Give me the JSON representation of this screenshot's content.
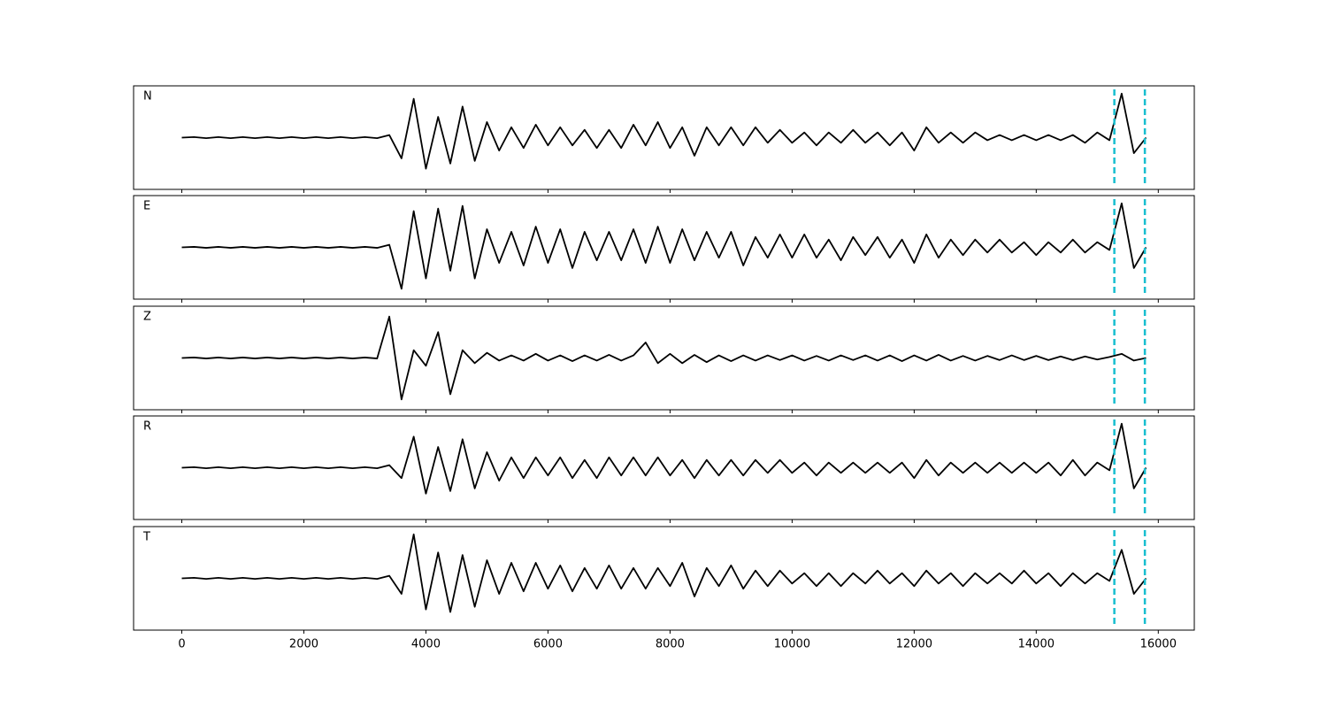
{
  "chart_data": [
    {
      "type": "line",
      "label": "N",
      "color": "#000000",
      "vline_color": "#17becf",
      "xlim": [
        -790,
        16590
      ],
      "ylim": [
        -1,
        1
      ],
      "xticks": [
        0,
        2000,
        4000,
        6000,
        8000,
        10000,
        12000,
        14000,
        16000
      ],
      "vlines": [
        15280,
        15780
      ],
      "x": [
        0,
        200,
        400,
        600,
        800,
        1000,
        1200,
        1400,
        1600,
        1800,
        2000,
        2200,
        2400,
        2600,
        2800,
        3000,
        3200,
        3400,
        3600,
        3800,
        4000,
        4200,
        4400,
        4600,
        4800,
        5000,
        5200,
        5400,
        5600,
        5800,
        6000,
        6200,
        6400,
        6600,
        6800,
        7000,
        7200,
        7400,
        7600,
        7800,
        8000,
        8200,
        8400,
        8600,
        8800,
        9000,
        9200,
        9400,
        9600,
        9800,
        10000,
        10200,
        10400,
        10600,
        10800,
        11000,
        11200,
        11400,
        11600,
        11800,
        12000,
        12200,
        12400,
        12600,
        12800,
        13000,
        13200,
        13400,
        13600,
        13800,
        14000,
        14200,
        14400,
        14600,
        14800,
        15000,
        15200,
        15400,
        15600,
        15800
      ],
      "values": [
        0,
        0.01,
        -0.01,
        0.01,
        -0.01,
        0.01,
        -0.01,
        0.01,
        -0.01,
        0.01,
        -0.01,
        0.01,
        -0.01,
        0.01,
        -0.01,
        0.01,
        -0.01,
        0.05,
        -0.4,
        0.75,
        -0.6,
        0.4,
        -0.5,
        0.6,
        -0.45,
        0.3,
        -0.25,
        0.2,
        -0.2,
        0.25,
        -0.15,
        0.2,
        -0.15,
        0.15,
        -0.2,
        0.15,
        -0.2,
        0.25,
        -0.15,
        0.3,
        -0.2,
        0.2,
        -0.35,
        0.2,
        -0.15,
        0.2,
        -0.15,
        0.2,
        -0.1,
        0.15,
        -0.1,
        0.1,
        -0.15,
        0.1,
        -0.1,
        0.15,
        -0.1,
        0.1,
        -0.15,
        0.1,
        -0.25,
        0.2,
        -0.1,
        0.1,
        -0.1,
        0.1,
        -0.05,
        0.05,
        -0.05,
        0.05,
        -0.05,
        0.05,
        -0.05,
        0.05,
        -0.1,
        0.1,
        -0.05,
        0.85,
        -0.3,
        0
      ]
    },
    {
      "type": "line",
      "label": "E",
      "color": "#000000",
      "vline_color": "#17becf",
      "xlim": [
        -790,
        16590
      ],
      "ylim": [
        -1,
        1
      ],
      "xticks": [
        0,
        2000,
        4000,
        6000,
        8000,
        10000,
        12000,
        14000,
        16000
      ],
      "vlines": [
        15280,
        15780
      ],
      "x": [
        0,
        200,
        400,
        600,
        800,
        1000,
        1200,
        1400,
        1600,
        1800,
        2000,
        2200,
        2400,
        2600,
        2800,
        3000,
        3200,
        3400,
        3600,
        3800,
        4000,
        4200,
        4400,
        4600,
        4800,
        5000,
        5200,
        5400,
        5600,
        5800,
        6000,
        6200,
        6400,
        6600,
        6800,
        7000,
        7200,
        7400,
        7600,
        7800,
        8000,
        8200,
        8400,
        8600,
        8800,
        9000,
        9200,
        9400,
        9600,
        9800,
        10000,
        10200,
        10400,
        10600,
        10800,
        11000,
        11200,
        11400,
        11600,
        11800,
        12000,
        12200,
        12400,
        12600,
        12800,
        13000,
        13200,
        13400,
        13600,
        13800,
        14000,
        14200,
        14400,
        14600,
        14800,
        15000,
        15200,
        15400,
        15600,
        15800
      ],
      "values": [
        0,
        0.01,
        -0.01,
        0.01,
        -0.01,
        0.01,
        -0.01,
        0.01,
        -0.01,
        0.01,
        -0.01,
        0.01,
        -0.01,
        0.01,
        -0.01,
        0.01,
        -0.01,
        0.05,
        -0.8,
        0.7,
        -0.6,
        0.75,
        -0.45,
        0.8,
        -0.6,
        0.35,
        -0.3,
        0.3,
        -0.35,
        0.4,
        -0.3,
        0.35,
        -0.4,
        0.3,
        -0.25,
        0.3,
        -0.25,
        0.35,
        -0.3,
        0.4,
        -0.3,
        0.35,
        -0.25,
        0.3,
        -0.2,
        0.3,
        -0.35,
        0.2,
        -0.2,
        0.25,
        -0.2,
        0.25,
        -0.2,
        0.15,
        -0.25,
        0.2,
        -0.15,
        0.2,
        -0.2,
        0.15,
        -0.3,
        0.25,
        -0.2,
        0.15,
        -0.15,
        0.15,
        -0.1,
        0.15,
        -0.1,
        0.1,
        -0.15,
        0.1,
        -0.1,
        0.15,
        -0.1,
        0.1,
        -0.05,
        0.85,
        -0.4,
        0
      ]
    },
    {
      "type": "line",
      "label": "Z",
      "color": "#000000",
      "vline_color": "#17becf",
      "xlim": [
        -790,
        16590
      ],
      "ylim": [
        -1,
        1
      ],
      "xticks": [
        0,
        2000,
        4000,
        6000,
        8000,
        10000,
        12000,
        14000,
        16000
      ],
      "vlines": [
        15280,
        15780
      ],
      "x": [
        0,
        200,
        400,
        600,
        800,
        1000,
        1200,
        1400,
        1600,
        1800,
        2000,
        2200,
        2400,
        2600,
        2800,
        3000,
        3200,
        3400,
        3600,
        3800,
        4000,
        4200,
        4400,
        4600,
        4800,
        5000,
        5200,
        5400,
        5600,
        5800,
        6000,
        6200,
        6400,
        6600,
        6800,
        7000,
        7200,
        7400,
        7600,
        7800,
        8000,
        8200,
        8400,
        8600,
        8800,
        9000,
        9200,
        9400,
        9600,
        9800,
        10000,
        10200,
        10400,
        10600,
        10800,
        11000,
        11200,
        11400,
        11600,
        11800,
        12000,
        12200,
        12400,
        12600,
        12800,
        13000,
        13200,
        13400,
        13600,
        13800,
        14000,
        14200,
        14400,
        14600,
        14800,
        15000,
        15200,
        15400,
        15600,
        15800
      ],
      "values": [
        0,
        0.01,
        -0.01,
        0.01,
        -0.01,
        0.01,
        -0.01,
        0.01,
        -0.01,
        0.01,
        -0.01,
        0.01,
        -0.01,
        0.01,
        -0.01,
        0.01,
        -0.01,
        0.8,
        -0.8,
        0.15,
        -0.15,
        0.5,
        -0.7,
        0.15,
        -0.1,
        0.1,
        -0.05,
        0.05,
        -0.05,
        0.08,
        -0.05,
        0.05,
        -0.06,
        0.05,
        -0.05,
        0.06,
        -0.05,
        0.05,
        0.3,
        -0.1,
        0.08,
        -0.1,
        0.06,
        -0.08,
        0.05,
        -0.06,
        0.05,
        -0.05,
        0.05,
        -0.04,
        0.05,
        -0.05,
        0.04,
        -0.05,
        0.05,
        -0.04,
        0.05,
        -0.05,
        0.05,
        -0.06,
        0.05,
        -0.05,
        0.06,
        -0.05,
        0.04,
        -0.05,
        0.04,
        -0.04,
        0.05,
        -0.04,
        0.04,
        -0.04,
        0.03,
        -0.04,
        0.03,
        -0.03,
        0.02,
        0.08,
        -0.05,
        0
      ]
    },
    {
      "type": "line",
      "label": "R",
      "color": "#000000",
      "vline_color": "#17becf",
      "xlim": [
        -790,
        16590
      ],
      "ylim": [
        -1,
        1
      ],
      "xticks": [
        0,
        2000,
        4000,
        6000,
        8000,
        10000,
        12000,
        14000,
        16000
      ],
      "vlines": [
        15280,
        15780
      ],
      "x": [
        0,
        200,
        400,
        600,
        800,
        1000,
        1200,
        1400,
        1600,
        1800,
        2000,
        2200,
        2400,
        2600,
        2800,
        3000,
        3200,
        3400,
        3600,
        3800,
        4000,
        4200,
        4400,
        4600,
        4800,
        5000,
        5200,
        5400,
        5600,
        5800,
        6000,
        6200,
        6400,
        6600,
        6800,
        7000,
        7200,
        7400,
        7600,
        7800,
        8000,
        8200,
        8400,
        8600,
        8800,
        9000,
        9200,
        9400,
        9600,
        9800,
        10000,
        10200,
        10400,
        10600,
        10800,
        11000,
        11200,
        11400,
        11600,
        11800,
        12000,
        12200,
        12400,
        12600,
        12800,
        13000,
        13200,
        13400,
        13600,
        13800,
        14000,
        14200,
        14400,
        14600,
        14800,
        15000,
        15200,
        15400,
        15600,
        15800
      ],
      "values": [
        0,
        0.01,
        -0.01,
        0.01,
        -0.01,
        0.01,
        -0.01,
        0.01,
        -0.01,
        0.01,
        -0.01,
        0.01,
        -0.01,
        0.01,
        -0.01,
        0.01,
        -0.01,
        0.05,
        -0.2,
        0.6,
        -0.5,
        0.4,
        -0.45,
        0.55,
        -0.4,
        0.3,
        -0.25,
        0.2,
        -0.2,
        0.2,
        -0.15,
        0.2,
        -0.2,
        0.15,
        -0.2,
        0.2,
        -0.15,
        0.2,
        -0.15,
        0.2,
        -0.15,
        0.15,
        -0.2,
        0.15,
        -0.15,
        0.15,
        -0.15,
        0.15,
        -0.1,
        0.15,
        -0.1,
        0.1,
        -0.15,
        0.1,
        -0.1,
        0.1,
        -0.1,
        0.1,
        -0.1,
        0.1,
        -0.2,
        0.15,
        -0.15,
        0.1,
        -0.1,
        0.1,
        -0.1,
        0.1,
        -0.1,
        0.1,
        -0.1,
        0.1,
        -0.15,
        0.15,
        -0.15,
        0.1,
        -0.05,
        0.85,
        -0.4,
        0
      ]
    },
    {
      "type": "line",
      "label": "T",
      "color": "#000000",
      "vline_color": "#17becf",
      "xlim": [
        -790,
        16590
      ],
      "ylim": [
        -1,
        1
      ],
      "xticks": [
        0,
        2000,
        4000,
        6000,
        8000,
        10000,
        12000,
        14000,
        16000
      ],
      "vlines": [
        15280,
        15780
      ],
      "x": [
        0,
        200,
        400,
        600,
        800,
        1000,
        1200,
        1400,
        1600,
        1800,
        2000,
        2200,
        2400,
        2600,
        2800,
        3000,
        3200,
        3400,
        3600,
        3800,
        4000,
        4200,
        4400,
        4600,
        4800,
        5000,
        5200,
        5400,
        5600,
        5800,
        6000,
        6200,
        6400,
        6600,
        6800,
        7000,
        7200,
        7400,
        7600,
        7800,
        8000,
        8200,
        8400,
        8600,
        8800,
        9000,
        9200,
        9400,
        9600,
        9800,
        10000,
        10200,
        10400,
        10600,
        10800,
        11000,
        11200,
        11400,
        11600,
        11800,
        12000,
        12200,
        12400,
        12600,
        12800,
        13000,
        13200,
        13400,
        13600,
        13800,
        14000,
        14200,
        14400,
        14600,
        14800,
        15000,
        15200,
        15400,
        15600,
        15800
      ],
      "values": [
        0,
        0.01,
        -0.01,
        0.01,
        -0.01,
        0.01,
        -0.01,
        0.01,
        -0.01,
        0.01,
        -0.01,
        0.01,
        -0.01,
        0.01,
        -0.01,
        0.01,
        -0.01,
        0.05,
        -0.3,
        0.85,
        -0.6,
        0.5,
        -0.65,
        0.45,
        -0.55,
        0.35,
        -0.3,
        0.3,
        -0.25,
        0.3,
        -0.2,
        0.25,
        -0.25,
        0.2,
        -0.2,
        0.25,
        -0.2,
        0.2,
        -0.2,
        0.2,
        -0.15,
        0.3,
        -0.35,
        0.2,
        -0.15,
        0.25,
        -0.2,
        0.15,
        -0.15,
        0.15,
        -0.1,
        0.1,
        -0.15,
        0.1,
        -0.15,
        0.1,
        -0.1,
        0.15,
        -0.1,
        0.1,
        -0.15,
        0.15,
        -0.1,
        0.1,
        -0.15,
        0.1,
        -0.1,
        0.1,
        -0.1,
        0.15,
        -0.1,
        0.1,
        -0.15,
        0.1,
        -0.1,
        0.1,
        -0.05,
        0.55,
        -0.3,
        0
      ]
    }
  ]
}
